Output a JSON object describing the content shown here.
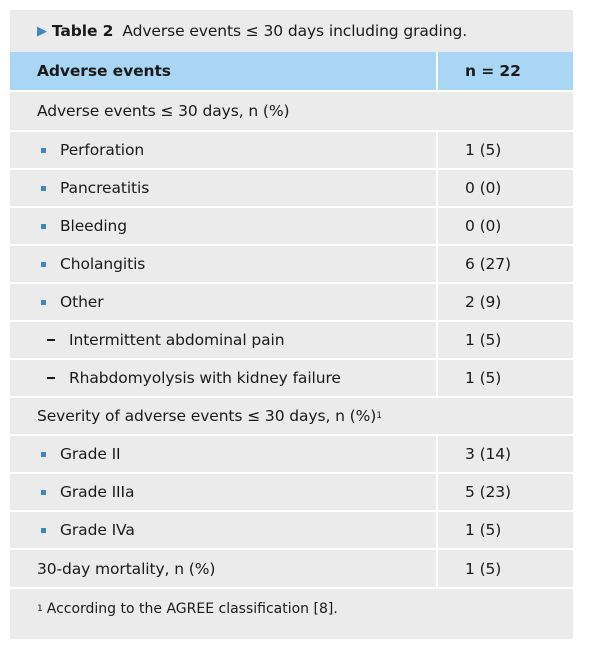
{
  "caption": {
    "marker": "▶",
    "number": "Table 2",
    "title": "Adverse events ≤ 30 days including grading."
  },
  "columns": [
    "Adverse events",
    "n = 22"
  ],
  "rows": [
    {
      "type": "section",
      "label": "Adverse events ≤ 30 days, n (%)",
      "sup": "",
      "value": ""
    },
    {
      "type": "bullet",
      "label": "Perforation",
      "value": "1 (5)"
    },
    {
      "type": "bullet",
      "label": "Pancreatitis",
      "value": "0 (0)"
    },
    {
      "type": "bullet",
      "label": "Bleeding",
      "value": "0 (0)"
    },
    {
      "type": "bullet",
      "label": "Cholangitis",
      "value": "6 (27)"
    },
    {
      "type": "bullet",
      "label": "Other",
      "value": "2 (9)"
    },
    {
      "type": "dash",
      "label": "Intermittent abdominal pain",
      "value": "1 (5)"
    },
    {
      "type": "dash",
      "label": "Rhabdomyolysis with kidney failure",
      "value": "1 (5)"
    },
    {
      "type": "section",
      "label": "Severity of adverse events ≤ 30 days, n (%)",
      "sup": "1",
      "value": ""
    },
    {
      "type": "bullet",
      "label": "Grade II",
      "value": "3 (14)"
    },
    {
      "type": "bullet",
      "label": "Grade IIIa",
      "value": "5 (23)"
    },
    {
      "type": "bullet",
      "label": "Grade IVa",
      "value": "1 (5)"
    },
    {
      "type": "plain",
      "label": "30-day mortality, n (%)",
      "value": "1 (5)"
    }
  ],
  "footnote": {
    "marker": "1",
    "text": "According to the AGREE classification [8]."
  },
  "colors": {
    "header_bg": "#a9d6f4",
    "body_bg": "#ebebeb",
    "accent": "#3f86c6"
  }
}
